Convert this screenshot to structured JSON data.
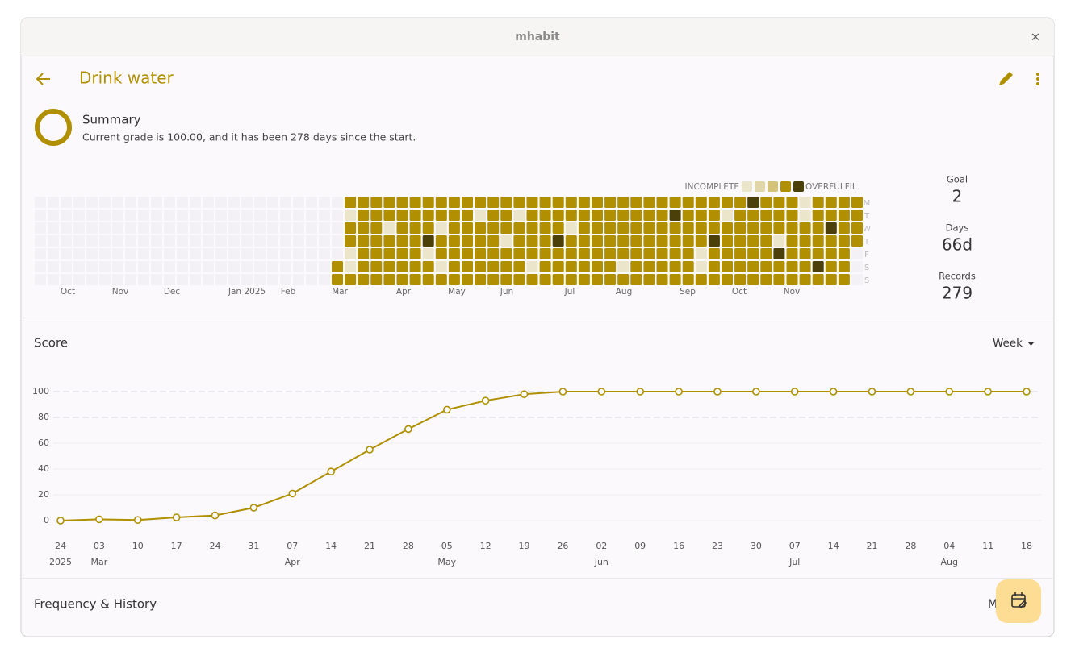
{
  "window": {
    "title": "mhabit",
    "close": "×"
  },
  "app_bar": {
    "title": "Drink water"
  },
  "summary": {
    "title": "Summary",
    "text": "Current grade is 100.00, and it has been 278 days since the start."
  },
  "heatmap": {
    "legend": {
      "low": "INCOMPLETE",
      "high": "OVERFULFIL",
      "colors": [
        "#ebe5cb",
        "#e0d6a8",
        "#d2c27a",
        "#b08f00",
        "#4b3f0a"
      ]
    },
    "weekdays": [
      "M",
      "T",
      "W",
      "T",
      "F",
      "S",
      "S"
    ],
    "months": [
      "Oct",
      "Nov",
      "Dec",
      "Jan 2025",
      "Feb",
      "Mar",
      "Apr",
      "May",
      "Jun",
      "Jul",
      "Aug",
      "Sep",
      "Oct",
      "Nov"
    ],
    "weeks": [
      [
        null,
        null,
        null,
        null,
        null,
        3,
        3
      ],
      [
        3,
        0,
        3,
        3,
        0,
        0,
        3
      ],
      [
        3,
        3,
        3,
        3,
        3,
        3,
        3
      ],
      [
        3,
        3,
        3,
        3,
        3,
        3,
        3
      ],
      [
        3,
        3,
        0,
        3,
        3,
        3,
        3
      ],
      [
        3,
        3,
        3,
        3,
        3,
        3,
        3
      ],
      [
        3,
        3,
        3,
        3,
        3,
        3,
        3
      ],
      [
        3,
        3,
        3,
        4,
        0,
        3,
        3
      ],
      [
        3,
        3,
        0,
        3,
        3,
        0,
        3
      ],
      [
        3,
        3,
        3,
        3,
        3,
        3,
        3
      ],
      [
        3,
        3,
        3,
        3,
        3,
        3,
        3
      ],
      [
        3,
        0,
        3,
        3,
        3,
        3,
        3
      ],
      [
        3,
        3,
        3,
        3,
        3,
        3,
        3
      ],
      [
        3,
        3,
        3,
        0,
        3,
        3,
        3
      ],
      [
        3,
        0,
        3,
        3,
        3,
        3,
        3
      ],
      [
        3,
        3,
        3,
        3,
        3,
        0,
        3
      ],
      [
        3,
        3,
        3,
        3,
        3,
        3,
        3
      ],
      [
        3,
        3,
        3,
        4,
        3,
        3,
        3
      ],
      [
        3,
        3,
        0,
        3,
        3,
        3,
        3
      ],
      [
        3,
        3,
        3,
        3,
        3,
        3,
        3
      ],
      [
        3,
        3,
        3,
        3,
        3,
        3,
        3
      ],
      [
        3,
        3,
        3,
        3,
        3,
        3,
        3
      ],
      [
        3,
        3,
        3,
        3,
        3,
        0,
        3
      ],
      [
        3,
        3,
        3,
        3,
        3,
        3,
        3
      ],
      [
        3,
        3,
        3,
        3,
        3,
        3,
        3
      ],
      [
        3,
        3,
        3,
        3,
        3,
        3,
        3
      ],
      [
        3,
        4,
        3,
        3,
        3,
        3,
        3
      ],
      [
        3,
        3,
        3,
        3,
        3,
        3,
        3
      ],
      [
        3,
        3,
        3,
        3,
        0,
        0,
        3
      ],
      [
        3,
        3,
        3,
        4,
        3,
        3,
        3
      ],
      [
        3,
        0,
        3,
        3,
        3,
        3,
        3
      ],
      [
        3,
        3,
        3,
        3,
        3,
        3,
        3
      ],
      [
        4,
        3,
        3,
        3,
        3,
        3,
        3
      ],
      [
        3,
        3,
        3,
        3,
        3,
        3,
        3
      ],
      [
        3,
        3,
        3,
        0,
        4,
        3,
        3
      ],
      [
        3,
        3,
        3,
        3,
        3,
        3,
        3
      ],
      [
        0,
        0,
        3,
        3,
        3,
        3,
        3
      ],
      [
        3,
        3,
        3,
        3,
        3,
        4,
        3
      ],
      [
        3,
        3,
        4,
        3,
        3,
        3,
        3
      ],
      [
        3,
        3,
        3,
        3,
        3,
        3,
        3
      ],
      [
        3,
        3,
        3,
        3,
        null,
        null,
        null
      ]
    ]
  },
  "stats": [
    {
      "label": "Goal",
      "value": 2
    },
    {
      "label": "Days",
      "value": "66d"
    },
    {
      "label": "Records",
      "value": 279
    }
  ],
  "score": {
    "title": "Score",
    "period": "Week"
  },
  "chart_data": {
    "type": "line",
    "color": "#b08f00",
    "categories": [
      "24",
      "03",
      "10",
      "17",
      "24",
      "31",
      "07",
      "14",
      "21",
      "28",
      "05",
      "12",
      "19",
      "26",
      "02",
      "09",
      "16",
      "23",
      "30",
      "07",
      "14",
      "21",
      "28",
      "04",
      "11",
      "18"
    ],
    "sublabels": [
      "2025",
      "Mar",
      null,
      null,
      null,
      null,
      "Apr",
      null,
      null,
      null,
      "May",
      null,
      null,
      null,
      "Jun",
      null,
      null,
      null,
      null,
      "Jul",
      null,
      null,
      null,
      "Aug",
      null,
      null
    ],
    "values": [
      0,
      1,
      0.5,
      2.5,
      4,
      10,
      21,
      38,
      55,
      71,
      86,
      93,
      98,
      100,
      100,
      100,
      100,
      100,
      100,
      100,
      100,
      100,
      100,
      100,
      100,
      100
    ],
    "ylim": [
      0,
      100
    ],
    "yticks": [
      0,
      20,
      40,
      60,
      80,
      100
    ],
    "grid": true
  },
  "frequency": {
    "title": "Frequency & History",
    "mode": "M"
  }
}
